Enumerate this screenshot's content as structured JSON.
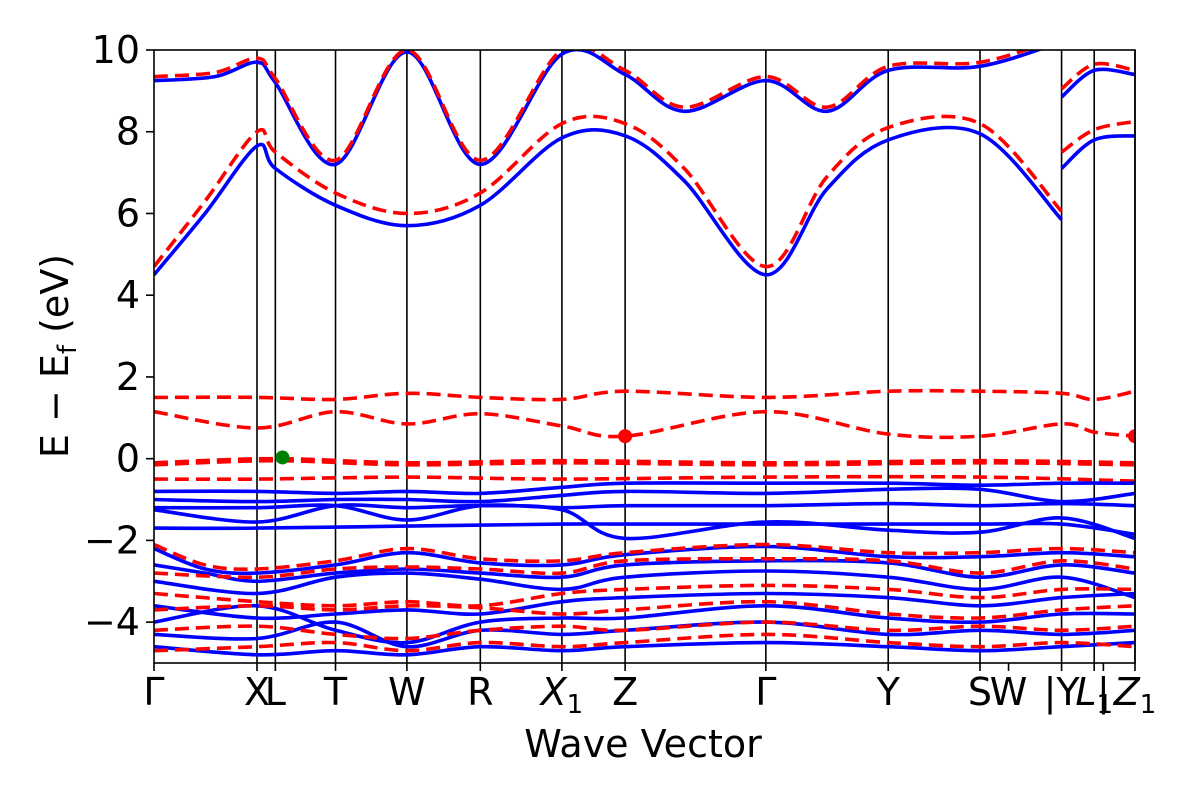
{
  "chart_data": {
    "type": "line",
    "title": "",
    "xlabel": "Wave Vector",
    "ylabel": "E − E",
    "ylabel_sub": "f",
    "ylabel_unit": " (eV)",
    "ylim": [
      -5,
      10
    ],
    "yticks": [
      -4,
      -2,
      0,
      2,
      4,
      6,
      8,
      10
    ],
    "ytick_labels": [
      "−4",
      "−2",
      "0",
      "2",
      "4",
      "6",
      "8",
      "10"
    ],
    "grid": false,
    "legend": "none",
    "xlim": [
      0,
      4.81
    ],
    "high_symmetry_points": [
      {
        "label": "Γ",
        "x": 0.0
      },
      {
        "label": "X",
        "x": 0.505
      },
      {
        "label": "L",
        "x": 0.595
      },
      {
        "label": "T",
        "x": 0.89
      },
      {
        "label": "W",
        "x": 1.24
      },
      {
        "label": "R",
        "x": 1.6
      },
      {
        "label": "X",
        "sub": "1",
        "x": 2.0
      },
      {
        "label": "Z",
        "x": 2.31
      },
      {
        "label": "Γ",
        "x": 3.0
      },
      {
        "label": "Y",
        "x": 3.6
      },
      {
        "label": "S",
        "x": 4.05
      },
      {
        "label": "W",
        "x": 4.19
      },
      {
        "label": "|Y",
        "x": 4.45
      },
      {
        "label": "L",
        "sub": "1",
        "x": 4.61
      },
      {
        "label": "|",
        "x": 4.655
      },
      {
        "label": "Z",
        "sub": "1",
        "x": 4.81
      }
    ],
    "vlines_x": [
      0.505,
      0.595,
      0.89,
      1.24,
      1.6,
      2.0,
      2.31,
      3.0,
      3.6,
      4.05,
      4.45,
      4.61,
      4.81
    ],
    "series": [
      {
        "style": "solid",
        "color": "#0000ff",
        "x": [
          0.0,
          0.25,
          0.505,
          0.595,
          0.89,
          1.24,
          1.6,
          2.0,
          2.31,
          2.6,
          3.0,
          3.3,
          3.6,
          4.05,
          4.45
        ],
        "y": [
          4.5,
          6.0,
          7.65,
          7.1,
          6.2,
          5.7,
          6.2,
          7.85,
          7.9,
          6.8,
          4.5,
          6.6,
          7.8,
          7.95,
          5.85
        ]
      },
      {
        "style": "solid",
        "color": "#0000ff",
        "x": [
          0.0,
          0.3,
          0.505,
          0.595,
          0.89,
          1.24,
          1.6,
          2.0,
          2.31,
          2.6,
          3.0,
          3.3,
          3.6,
          4.05,
          4.45
        ],
        "y": [
          9.25,
          9.35,
          9.7,
          9.2,
          7.2,
          9.95,
          7.2,
          9.9,
          9.4,
          8.5,
          9.25,
          8.5,
          9.5,
          9.6,
          10.2
        ]
      },
      {
        "style": "solid",
        "color": "#0000ff",
        "x": [
          4.45,
          4.61,
          4.81
        ],
        "y": [
          7.1,
          7.8,
          7.9
        ]
      },
      {
        "style": "solid",
        "color": "#0000ff",
        "x": [
          4.45,
          4.61,
          4.81
        ],
        "y": [
          8.85,
          9.5,
          9.4
        ]
      },
      {
        "style": "dashed",
        "color": "#ff0000",
        "x": [
          0.0,
          0.25,
          0.505,
          0.595,
          0.89,
          1.24,
          1.6,
          2.0,
          2.31,
          2.6,
          3.0,
          3.3,
          3.6,
          4.05,
          4.45
        ],
        "y": [
          4.7,
          6.3,
          8.0,
          7.5,
          6.5,
          6.0,
          6.5,
          8.2,
          8.2,
          7.1,
          4.7,
          6.9,
          8.1,
          8.2,
          6.05
        ]
      },
      {
        "style": "dashed",
        "color": "#ff0000",
        "x": [
          0.0,
          0.3,
          0.505,
          0.595,
          0.89,
          1.24,
          1.6,
          2.0,
          2.31,
          2.6,
          3.0,
          3.3,
          3.6,
          4.05,
          4.45
        ],
        "y": [
          9.35,
          9.45,
          9.8,
          9.3,
          7.3,
          10.0,
          7.3,
          10.0,
          9.5,
          8.6,
          9.35,
          8.6,
          9.6,
          9.7,
          10.3
        ]
      },
      {
        "style": "dashed",
        "color": "#ff0000",
        "x": [
          4.45,
          4.61,
          4.81
        ],
        "y": [
          7.5,
          8.05,
          8.25
        ]
      },
      {
        "style": "dashed",
        "color": "#ff0000",
        "x": [
          4.45,
          4.61,
          4.81
        ],
        "y": [
          9.05,
          9.65,
          9.5
        ]
      },
      {
        "style": "dashed",
        "color": "#ff0000",
        "x": [
          0.0,
          0.505,
          0.89,
          1.24,
          1.6,
          2.0,
          2.31,
          3.0,
          3.6,
          4.05,
          4.45,
          4.61,
          4.81
        ],
        "y": [
          1.5,
          1.5,
          1.45,
          1.6,
          1.5,
          1.45,
          1.65,
          1.5,
          1.65,
          1.65,
          1.6,
          1.45,
          1.65
        ]
      },
      {
        "style": "dashed",
        "color": "#ff0000",
        "x": [
          0.0,
          0.505,
          0.89,
          1.24,
          1.6,
          2.0,
          2.31,
          3.0,
          3.6,
          4.05,
          4.45,
          4.61,
          4.81
        ],
        "y": [
          1.15,
          0.75,
          1.15,
          0.85,
          1.1,
          0.8,
          0.55,
          1.15,
          0.6,
          0.55,
          0.85,
          0.65,
          0.55
        ]
      },
      {
        "style": "dashed",
        "color": "#ff0000",
        "x": [
          0.0,
          0.595,
          1.24,
          2.0,
          3.0,
          4.05,
          4.81
        ],
        "y": [
          -0.1,
          0.0,
          -0.1,
          -0.05,
          -0.1,
          -0.05,
          -0.1
        ]
      },
      {
        "style": "dashed",
        "color": "#ff0000",
        "x": [
          0.0,
          0.595,
          1.24,
          2.0,
          3.0,
          4.05,
          4.81
        ],
        "y": [
          -0.15,
          -0.05,
          -0.15,
          -0.1,
          -0.15,
          -0.1,
          -0.15
        ]
      },
      {
        "style": "dashed",
        "color": "#ff0000",
        "x": [
          0.0,
          0.505,
          1.24,
          2.0,
          3.0,
          4.05,
          4.81
        ],
        "y": [
          -0.5,
          -0.5,
          -0.45,
          -0.5,
          -0.45,
          -0.45,
          -0.55
        ]
      },
      {
        "style": "solid",
        "color": "#0000ff",
        "x": [
          0.0,
          0.505,
          0.89,
          1.24,
          1.6,
          2.0,
          2.31,
          3.0,
          3.6,
          4.05,
          4.45,
          4.81
        ],
        "y": [
          -0.8,
          -0.8,
          -0.85,
          -0.8,
          -0.85,
          -0.7,
          -0.6,
          -0.6,
          -0.6,
          -0.65,
          -0.6,
          -0.6
        ]
      },
      {
        "style": "solid",
        "color": "#0000ff",
        "x": [
          0.0,
          0.505,
          0.89,
          1.24,
          1.6,
          2.0,
          2.31,
          3.0,
          3.6,
          4.05,
          4.45,
          4.81
        ],
        "y": [
          -1.0,
          -1.05,
          -1.0,
          -1.0,
          -1.05,
          -0.9,
          -0.8,
          -0.85,
          -0.75,
          -0.75,
          -1.05,
          -0.85
        ]
      },
      {
        "style": "solid",
        "color": "#0000ff",
        "x": [
          0.0,
          0.505,
          0.89,
          1.24,
          1.6,
          2.0,
          2.31,
          3.0,
          3.6,
          4.05,
          4.45,
          4.81
        ],
        "y": [
          -1.2,
          -1.2,
          -1.15,
          -1.5,
          -1.15,
          -1.2,
          -1.15,
          -1.15,
          -1.1,
          -1.15,
          -1.1,
          -1.15
        ]
      },
      {
        "style": "solid",
        "color": "#0000ff",
        "x": [
          0.0,
          0.505,
          0.89,
          1.24,
          1.6,
          2.0,
          2.31,
          3.0,
          3.6,
          4.05,
          4.45,
          4.81
        ],
        "y": [
          -1.25,
          -1.55,
          -1.15,
          -1.2,
          -1.15,
          -1.25,
          -1.95,
          -1.55,
          -1.75,
          -1.8,
          -1.45,
          -1.95
        ]
      },
      {
        "style": "solid",
        "color": "#0000ff",
        "x": [
          0.0,
          0.505,
          1.24,
          2.0,
          2.31,
          3.0,
          4.05,
          4.45,
          4.81
        ],
        "y": [
          -1.7,
          -1.7,
          -1.65,
          -1.6,
          -1.6,
          -1.6,
          -1.6,
          -1.6,
          -1.85
        ]
      },
      {
        "style": "solid",
        "color": "#0000ff",
        "x": [
          0.0,
          0.25,
          0.505,
          0.89,
          1.24,
          1.6,
          2.0,
          2.31,
          3.0,
          3.6,
          4.05,
          4.45,
          4.81
        ],
        "y": [
          -2.2,
          -2.7,
          -2.8,
          -2.6,
          -2.3,
          -2.55,
          -2.6,
          -2.35,
          -2.15,
          -2.4,
          -2.4,
          -2.3,
          -2.4
        ]
      },
      {
        "style": "solid",
        "color": "#0000ff",
        "x": [
          0.0,
          0.25,
          0.505,
          0.89,
          1.24,
          1.6,
          2.0,
          2.31,
          3.0,
          3.6,
          4.05,
          4.45,
          4.81
        ],
        "y": [
          -2.6,
          -2.8,
          -3.0,
          -2.8,
          -2.7,
          -2.8,
          -2.9,
          -2.6,
          -2.5,
          -2.55,
          -2.9,
          -2.6,
          -2.8
        ]
      },
      {
        "style": "solid",
        "color": "#0000ff",
        "x": [
          0.0,
          0.505,
          0.89,
          1.24,
          1.6,
          2.0,
          2.31,
          3.0,
          3.6,
          4.05,
          4.45,
          4.81
        ],
        "y": [
          -3.0,
          -3.3,
          -2.9,
          -2.8,
          -2.95,
          -3.2,
          -2.9,
          -2.75,
          -2.9,
          -3.2,
          -2.9,
          -3.4
        ]
      },
      {
        "style": "solid",
        "color": "#0000ff",
        "x": [
          0.0,
          0.505,
          0.89,
          1.24,
          1.6,
          2.0,
          2.31,
          3.0,
          3.6,
          4.05,
          4.45,
          4.81
        ],
        "y": [
          -3.6,
          -3.9,
          -3.8,
          -3.7,
          -3.8,
          -3.5,
          -3.4,
          -3.3,
          -3.4,
          -3.6,
          -3.4,
          -3.3
        ]
      },
      {
        "style": "solid",
        "color": "#0000ff",
        "x": [
          0.0,
          0.505,
          0.89,
          1.24,
          1.6,
          2.0,
          2.31,
          3.0,
          3.6,
          4.05,
          4.45,
          4.81
        ],
        "y": [
          -4.0,
          -3.6,
          -4.2,
          -4.5,
          -4.0,
          -3.9,
          -3.9,
          -3.6,
          -3.9,
          -4.0,
          -3.8,
          -3.8
        ]
      },
      {
        "style": "solid",
        "color": "#0000ff",
        "x": [
          0.0,
          0.505,
          0.89,
          1.24,
          1.6,
          2.0,
          2.31,
          3.0,
          3.6,
          4.05,
          4.45,
          4.81
        ],
        "y": [
          -4.3,
          -4.4,
          -4.0,
          -4.6,
          -4.2,
          -4.3,
          -4.2,
          -4.0,
          -4.3,
          -4.2,
          -4.3,
          -4.2
        ]
      },
      {
        "style": "solid",
        "color": "#0000ff",
        "x": [
          0.0,
          0.505,
          0.89,
          1.24,
          1.6,
          2.0,
          2.31,
          3.0,
          3.6,
          4.05,
          4.45,
          4.81
        ],
        "y": [
          -4.6,
          -4.8,
          -4.7,
          -4.8,
          -4.6,
          -4.7,
          -4.6,
          -4.5,
          -4.6,
          -4.7,
          -4.6,
          -4.5
        ]
      },
      {
        "style": "dashed",
        "color": "#ff0000",
        "x": [
          0.0,
          0.25,
          0.505,
          0.89,
          1.24,
          1.6,
          2.0,
          2.31,
          3.0,
          3.6,
          4.05,
          4.45,
          4.81
        ],
        "y": [
          -2.1,
          -2.6,
          -2.7,
          -2.5,
          -2.2,
          -2.45,
          -2.5,
          -2.3,
          -2.1,
          -2.3,
          -2.3,
          -2.2,
          -2.3
        ]
      },
      {
        "style": "dashed",
        "color": "#ff0000",
        "x": [
          0.0,
          0.505,
          0.89,
          1.24,
          1.6,
          2.0,
          2.31,
          3.0,
          3.6,
          4.05,
          4.45,
          4.81
        ],
        "y": [
          -2.8,
          -2.9,
          -2.7,
          -2.65,
          -2.7,
          -2.8,
          -2.5,
          -2.45,
          -2.5,
          -2.8,
          -2.5,
          -2.7
        ]
      },
      {
        "style": "dashed",
        "color": "#ff0000",
        "x": [
          0.0,
          0.505,
          0.89,
          1.24,
          1.6,
          2.0,
          2.31,
          3.0,
          3.6,
          4.05,
          4.45,
          4.81
        ],
        "y": [
          -3.3,
          -3.5,
          -3.6,
          -3.5,
          -3.6,
          -3.3,
          -3.2,
          -3.1,
          -3.2,
          -3.4,
          -3.2,
          -3.2
        ]
      },
      {
        "style": "dashed",
        "color": "#ff0000",
        "x": [
          0.0,
          0.505,
          0.89,
          1.24,
          1.6,
          2.0,
          2.31,
          3.0,
          3.6,
          4.05,
          4.45,
          4.81
        ],
        "y": [
          -3.7,
          -3.6,
          -3.7,
          -3.6,
          -3.65,
          -3.8,
          -3.7,
          -3.5,
          -3.8,
          -3.9,
          -3.7,
          -3.6
        ]
      },
      {
        "style": "dashed",
        "color": "#ff0000",
        "x": [
          0.0,
          0.505,
          0.89,
          1.24,
          1.6,
          2.0,
          2.31,
          3.0,
          3.6,
          4.05,
          4.45,
          4.81
        ],
        "y": [
          -4.2,
          -4.1,
          -4.3,
          -4.4,
          -4.2,
          -4.1,
          -4.2,
          -4.0,
          -4.2,
          -4.1,
          -4.2,
          -4.1
        ]
      },
      {
        "style": "dashed",
        "color": "#ff0000",
        "x": [
          0.0,
          0.505,
          0.89,
          1.24,
          1.6,
          2.0,
          2.31,
          3.0,
          3.6,
          4.05,
          4.45,
          4.81
        ],
        "y": [
          -4.7,
          -4.6,
          -4.5,
          -4.7,
          -4.5,
          -4.6,
          -4.5,
          -4.3,
          -4.5,
          -4.6,
          -4.5,
          -4.6
        ]
      }
    ],
    "markers": [
      {
        "x": 0.63,
        "y": 0.03,
        "color": "#008000"
      },
      {
        "x": 2.31,
        "y": 0.55,
        "color": "#ff0000"
      },
      {
        "x": 4.81,
        "y": 0.55,
        "color": "#ff0000"
      }
    ]
  }
}
